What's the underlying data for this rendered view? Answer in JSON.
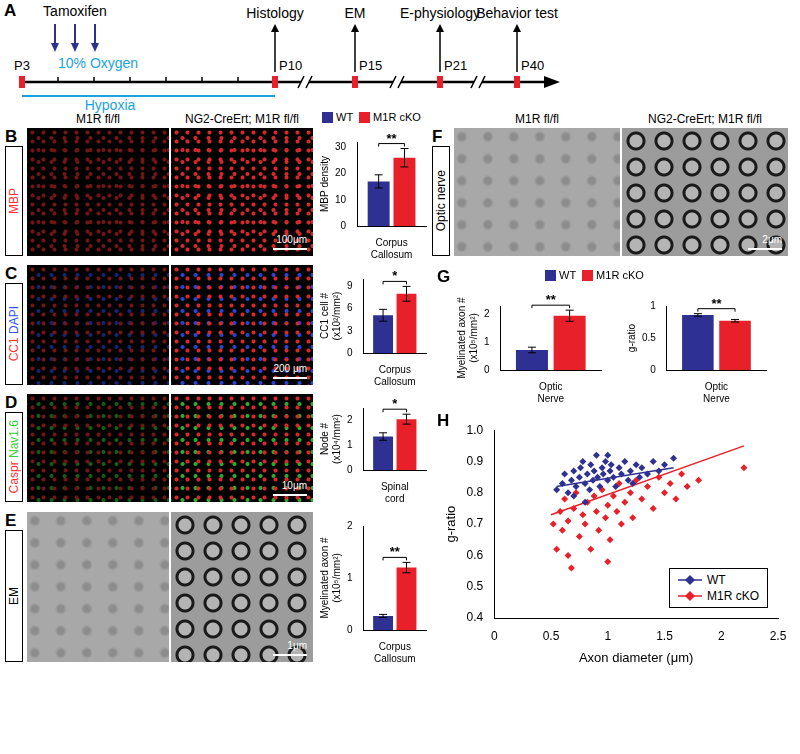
{
  "timeline": {
    "panel": "A",
    "ticks": [
      "P3",
      "P10",
      "P15",
      "P21",
      "P40"
    ],
    "events": [
      {
        "at": "P10",
        "text": "Histology"
      },
      {
        "at": "P15",
        "text": "EM"
      },
      {
        "at": "P21",
        "text": "E-physiology"
      },
      {
        "at": "P40",
        "text": "Behavior test"
      }
    ],
    "treatment": "Tamoxifen",
    "condition": "10% Oxygen",
    "period": "Hypoxia"
  },
  "image_rows": [
    {
      "panel": "B",
      "stain": [
        {
          "text": "MBP",
          "color": "#ff3030"
        }
      ],
      "headers": [
        "M1R fl/fl",
        "NG2-CreErt; M1R fl/fl"
      ],
      "scale_bar": "100μm"
    },
    {
      "panel": "C",
      "stain": [
        {
          "text": "CC1",
          "color": "#ff3030"
        },
        {
          "text": "DAPI",
          "color": "#3050ff"
        }
      ],
      "scale_bar": "200 μm"
    },
    {
      "panel": "D",
      "stain": [
        {
          "text": "Caspr",
          "color": "#ff3030"
        },
        {
          "text": "Nav1.6",
          "color": "#30d030"
        }
      ],
      "scale_bar": "10μm"
    },
    {
      "panel": "E",
      "stain": [
        {
          "text": "EM",
          "color": "#000000"
        }
      ],
      "scale_bar": "1μm"
    },
    {
      "panel": "F",
      "stain": [
        {
          "text": "Optic nerve",
          "color": "#000000"
        }
      ],
      "headers": [
        "M1R fl/fl",
        "NG2-CreErt; M1R fl/fl"
      ],
      "scale_bar": "2μm"
    }
  ],
  "chart_data": [
    {
      "panel": "B",
      "type": "bar",
      "categories": [
        "Corpus Callosum"
      ],
      "ylabel": [
        "MBP density"
      ],
      "ylim": [
        0,
        32
      ],
      "yticks": [
        0,
        10,
        20,
        30
      ],
      "grid": false,
      "legend": "top",
      "significance": "**",
      "series": [
        {
          "name": "WT",
          "color": "#2e3192",
          "values": [
            17
          ],
          "errors": [
            2.5
          ]
        },
        {
          "name": "M1R cKO",
          "color": "#e8202a",
          "values": [
            26
          ],
          "errors": [
            3.5
          ]
        }
      ]
    },
    {
      "panel": "C",
      "type": "bar",
      "categories": [
        "Corpus Callosum"
      ],
      "ylabel": [
        "CC1 cell #",
        "(x10²/mm²)"
      ],
      "ylim": [
        0,
        10
      ],
      "yticks": [
        0,
        3,
        6,
        9
      ],
      "grid": false,
      "significance": "*",
      "series": [
        {
          "name": "WT",
          "color": "#2e3192",
          "values": [
            5.1
          ],
          "errors": [
            0.8
          ]
        },
        {
          "name": "M1R cKO",
          "color": "#e8202a",
          "values": [
            8.0
          ],
          "errors": [
            1.0
          ]
        }
      ]
    },
    {
      "panel": "D",
      "type": "bar",
      "categories": [
        "Spinal cord"
      ],
      "ylabel": [
        "Node #",
        "(x10⁴/mm²)"
      ],
      "ylim": [
        0,
        2.5
      ],
      "yticks": [
        0,
        1,
        2
      ],
      "grid": false,
      "significance": "*",
      "series": [
        {
          "name": "WT",
          "color": "#2e3192",
          "values": [
            1.35
          ],
          "errors": [
            0.15
          ]
        },
        {
          "name": "M1R cKO",
          "color": "#e8202a",
          "values": [
            2.05
          ],
          "errors": [
            0.2
          ]
        }
      ]
    },
    {
      "panel": "E",
      "type": "bar",
      "categories": [
        "Corpus Callosum"
      ],
      "ylabel": [
        "Myelinated axon #",
        "(x10⁵/mm²)"
      ],
      "ylim": [
        0,
        2
      ],
      "yticks": [
        0,
        1,
        2
      ],
      "grid": false,
      "significance": "**",
      "series": [
        {
          "name": "WT",
          "color": "#2e3192",
          "values": [
            0.27
          ],
          "errors": [
            0.03
          ]
        },
        {
          "name": "M1R cKO",
          "color": "#e8202a",
          "values": [
            1.2
          ],
          "errors": [
            0.1
          ]
        }
      ]
    },
    {
      "panel": "G",
      "type": "bar",
      "categories": [
        "Optic Nerve"
      ],
      "ylabel": [
        "Myelinated axon #",
        "(x10⁵/mm²)"
      ],
      "ylim": [
        0,
        2.3
      ],
      "yticks": [
        0,
        1,
        2
      ],
      "grid": false,
      "legend": "top",
      "significance": "**",
      "series": [
        {
          "name": "WT",
          "color": "#2e3192",
          "values": [
            0.72
          ],
          "errors": [
            0.1
          ]
        },
        {
          "name": "M1R cKO",
          "color": "#e8202a",
          "values": [
            1.95
          ],
          "errors": [
            0.2
          ]
        }
      ]
    },
    {
      "panel": "G",
      "type": "bar",
      "categories": [
        "Optic Nerve"
      ],
      "ylabel": [
        "g-ratio"
      ],
      "ylim": [
        0,
        1
      ],
      "yticks": [
        0,
        0.5,
        1
      ],
      "grid": false,
      "significance": "**",
      "series": [
        {
          "name": "WT",
          "color": "#2e3192",
          "values": [
            0.86
          ],
          "errors": [
            0.02
          ]
        },
        {
          "name": "M1R cKO",
          "color": "#e8202a",
          "values": [
            0.77
          ],
          "errors": [
            0.02
          ]
        }
      ]
    },
    {
      "panel": "H",
      "type": "scatter",
      "xlabel": "Axon diameter (μm)",
      "ylabel": [
        "g-ratio"
      ],
      "xlim": [
        0,
        2.5
      ],
      "xticks": [
        0,
        0.5,
        1,
        1.5,
        2,
        2.5
      ],
      "ylim": [
        0.4,
        1.0
      ],
      "yticks": [
        0.4,
        0.5,
        0.6,
        0.7,
        0.8,
        0.9,
        {
          "value": 1,
          "label": "1.0"
        }
      ],
      "grid": false,
      "legend": "bottom-right",
      "series": [
        {
          "name": "WT",
          "color": "#2e3192",
          "marker": "diamond",
          "x": [
            0.55,
            0.6,
            0.62,
            0.65,
            0.68,
            0.7,
            0.72,
            0.75,
            0.76,
            0.78,
            0.8,
            0.82,
            0.84,
            0.85,
            0.87,
            0.88,
            0.9,
            0.91,
            0.93,
            0.95,
            0.96,
            0.98,
            1.0,
            1.02,
            1.03,
            1.05,
            1.07,
            1.1,
            1.12,
            1.15,
            1.18,
            1.2,
            1.25,
            1.28,
            1.3,
            1.35,
            1.4,
            1.45,
            1.5,
            1.58,
            0.8,
            1.0,
            0.7,
            1.22
          ],
          "values": [
            0.81,
            0.83,
            0.86,
            0.8,
            0.84,
            0.87,
            0.82,
            0.85,
            0.88,
            0.9,
            0.83,
            0.86,
            0.81,
            0.89,
            0.84,
            0.87,
            0.92,
            0.85,
            0.82,
            0.88,
            0.86,
            0.9,
            0.84,
            0.87,
            0.89,
            0.85,
            0.82,
            0.88,
            0.86,
            0.9,
            0.84,
            0.87,
            0.89,
            0.85,
            0.88,
            0.86,
            0.9,
            0.87,
            0.89,
            0.91,
            0.77,
            0.92,
            0.79,
            0.83
          ],
          "fit": {
            "x": [
              0.55,
              1.58
            ],
            "values": [
              0.82,
              0.88
            ]
          }
        },
        {
          "name": "M1R cKO",
          "color": "#e8202a",
          "marker": "diamond",
          "x": [
            0.52,
            0.55,
            0.58,
            0.6,
            0.62,
            0.65,
            0.68,
            0.7,
            0.72,
            0.75,
            0.78,
            0.8,
            0.82,
            0.85,
            0.88,
            0.9,
            0.92,
            0.95,
            0.98,
            1.0,
            1.02,
            1.05,
            1.08,
            1.1,
            1.12,
            1.15,
            1.2,
            1.22,
            1.25,
            1.3,
            1.35,
            1.4,
            1.45,
            1.5,
            1.55,
            1.6,
            1.65,
            1.7,
            1.8,
            2.2,
            0.65,
            1.0
          ],
          "values": [
            0.7,
            0.62,
            0.74,
            0.68,
            0.78,
            0.71,
            0.56,
            0.75,
            0.8,
            0.66,
            0.73,
            0.7,
            0.77,
            0.62,
            0.79,
            0.74,
            0.68,
            0.81,
            0.72,
            0.76,
            0.65,
            0.79,
            0.74,
            0.83,
            0.7,
            0.77,
            0.8,
            0.72,
            0.84,
            0.78,
            0.82,
            0.75,
            0.85,
            0.8,
            0.83,
            0.78,
            0.86,
            0.82,
            0.84,
            0.88,
            0.6,
            0.58
          ],
          "fit": {
            "x": [
              0.5,
              2.2
            ],
            "values": [
              0.73,
              0.95
            ]
          }
        }
      ]
    }
  ]
}
